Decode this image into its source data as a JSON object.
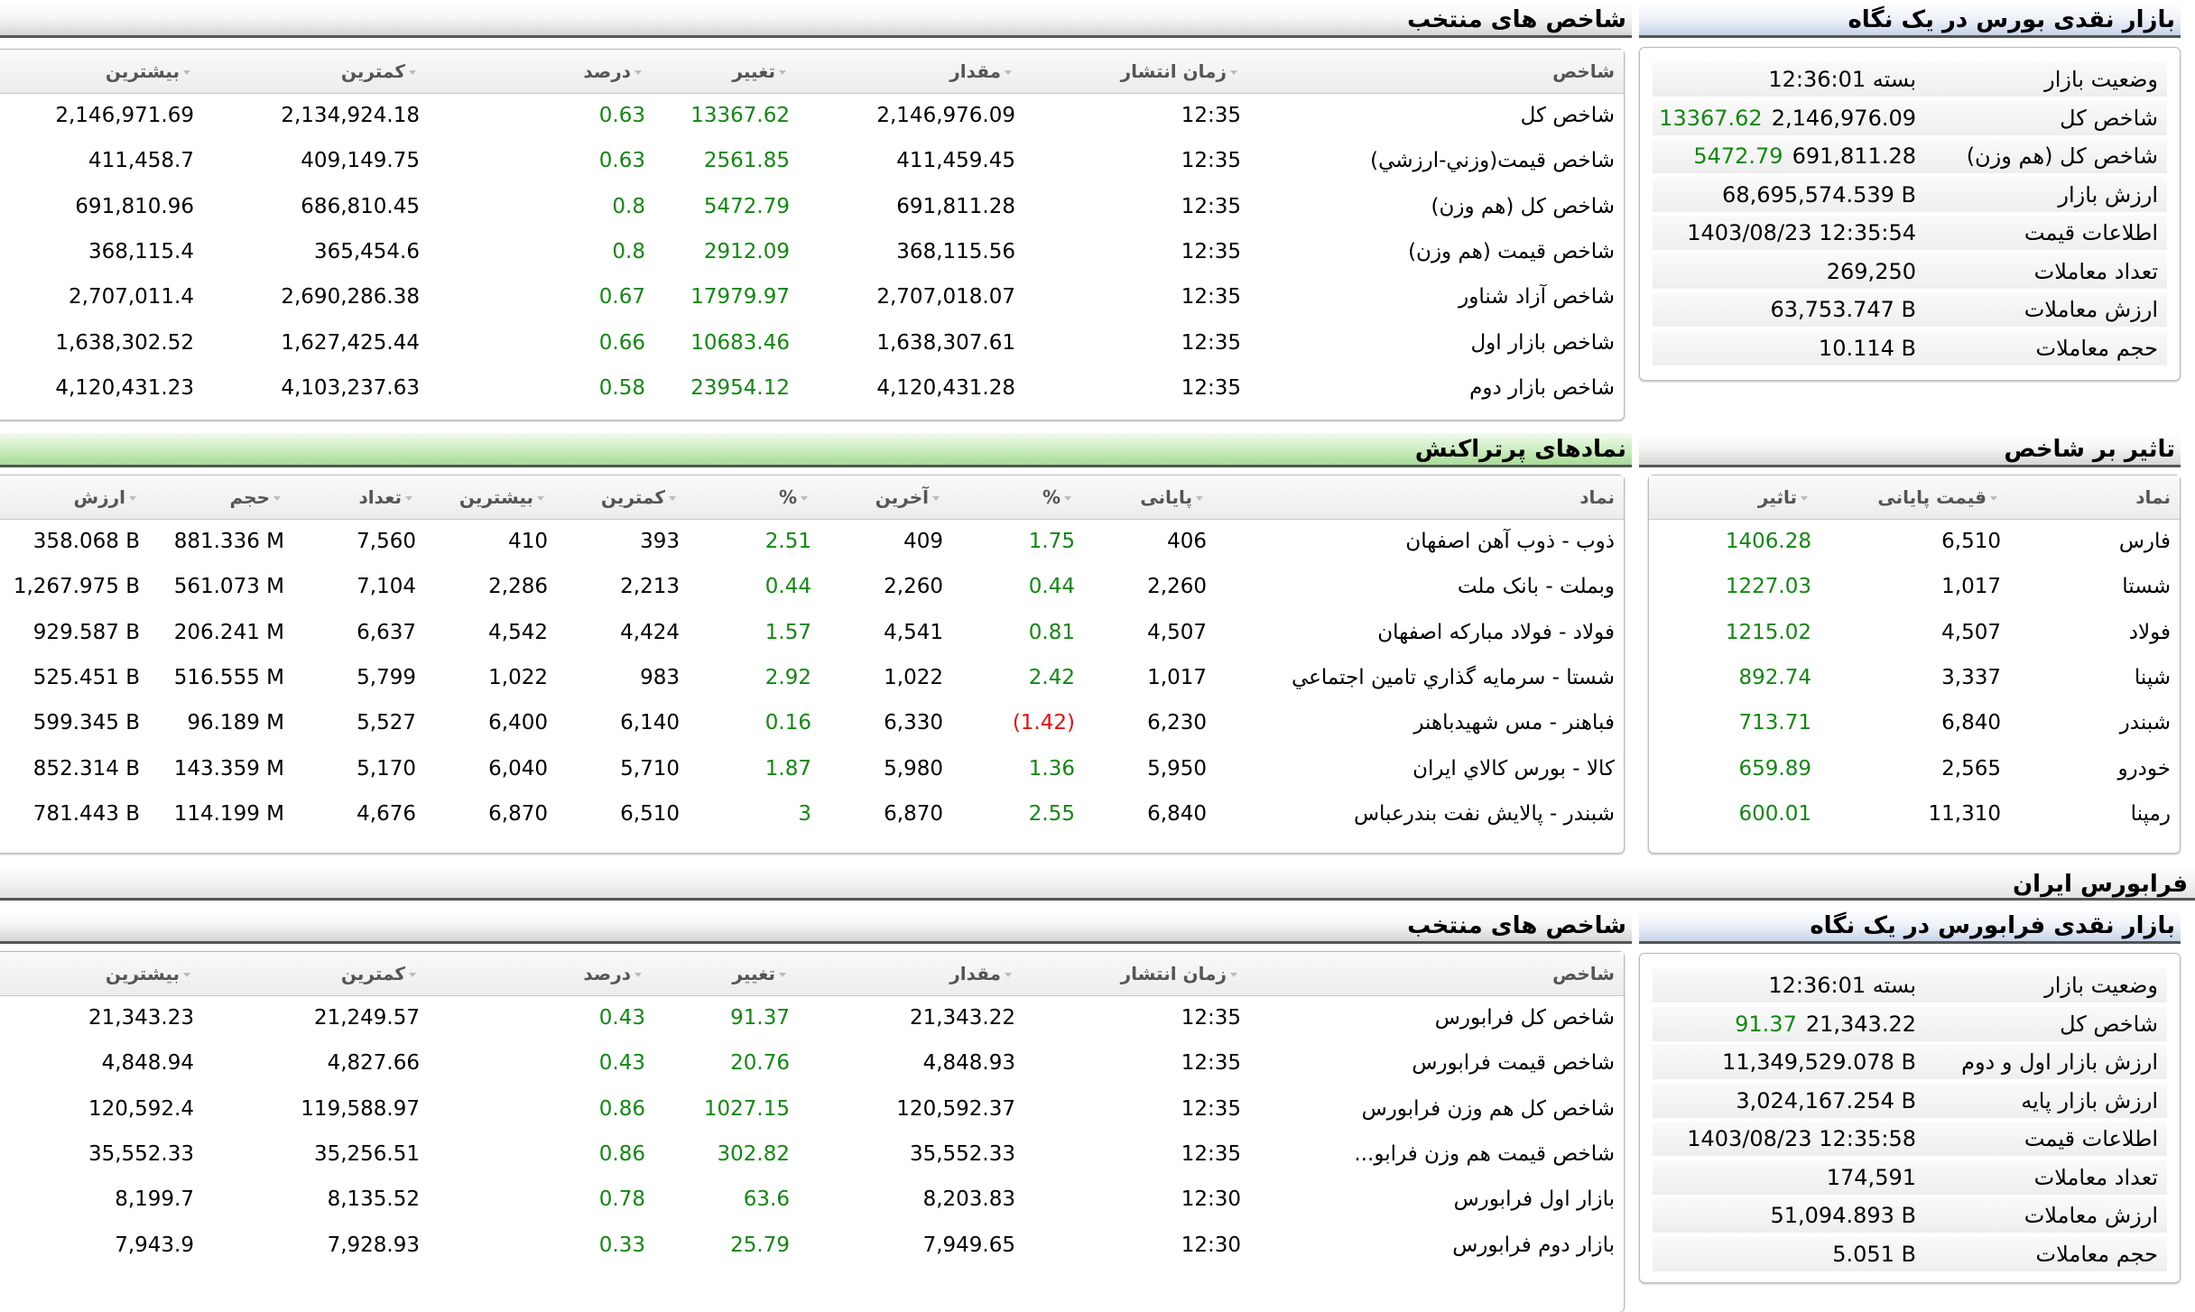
{
  "bourse": {
    "glance": {
      "title": "بازار نقدی بورس در یک نگاه",
      "rows": [
        {
          "label": "وضعیت بازار",
          "value": "بسته 12:36:01",
          "change": ""
        },
        {
          "label": "شاخص کل",
          "value": "2,146,976.09",
          "change": "13367.62"
        },
        {
          "label": "شاخص کل (هم وزن)",
          "value": "691,811.28",
          "change": "5472.79"
        },
        {
          "label": "ارزش بازار",
          "value": "68,695,574.539 B",
          "change": ""
        },
        {
          "label": "اطلاعات قیمت",
          "value": "1403/08/23 12:35:54",
          "change": ""
        },
        {
          "label": "تعداد معاملات",
          "value": "269,250",
          "change": ""
        },
        {
          "label": "ارزش معاملات",
          "value": "63,753.747 B",
          "change": ""
        },
        {
          "label": "حجم معاملات",
          "value": "10.114 B",
          "change": ""
        }
      ]
    },
    "indices": {
      "title": "شاخص های منتخب",
      "headers": [
        "شاخص",
        "زمان انتشار",
        "مقدار",
        "تغییر",
        "درصد",
        "کمترین",
        "بیشترین"
      ],
      "rows": [
        [
          "شاخص کل",
          "12:35",
          "2,146,976.09",
          "13367.62",
          "0.63",
          "2,134,924.18",
          "2,146,971.69"
        ],
        [
          "شاخص قیمت(وزني-ارزشي)",
          "12:35",
          "411,459.45",
          "2561.85",
          "0.63",
          "409,149.75",
          "411,458.7"
        ],
        [
          "شاخص کل (هم وزن)",
          "12:35",
          "691,811.28",
          "5472.79",
          "0.8",
          "686,810.45",
          "691,810.96"
        ],
        [
          "شاخص قیمت (هم وزن)",
          "12:35",
          "368,115.56",
          "2912.09",
          "0.8",
          "365,454.6",
          "368,115.4"
        ],
        [
          "شاخص آزاد شناور",
          "12:35",
          "2,707,018.07",
          "17979.97",
          "0.67",
          "2,690,286.38",
          "2,707,011.4"
        ],
        [
          "شاخص بازار اول",
          "12:35",
          "1,638,307.61",
          "10683.46",
          "0.66",
          "1,627,425.44",
          "1,638,302.52"
        ],
        [
          "شاخص بازار دوم",
          "12:35",
          "4,120,431.28",
          "23954.12",
          "0.58",
          "4,103,237.63",
          "4,120,431.23"
        ]
      ]
    },
    "impact": {
      "title": "تاثیر بر شاخص",
      "headers": [
        "نماد",
        "قیمت پایانی",
        "تاثیر"
      ],
      "rows": [
        [
          "فارس",
          "6,510",
          "1406.28"
        ],
        [
          "شستا",
          "1,017",
          "1227.03"
        ],
        [
          "فولاد",
          "4,507",
          "1215.02"
        ],
        [
          "شپنا",
          "3,337",
          "892.74"
        ],
        [
          "شبندر",
          "6,840",
          "713.71"
        ],
        [
          "خودرو",
          "2,565",
          "659.89"
        ],
        [
          "رمپنا",
          "11,310",
          "600.01"
        ]
      ]
    },
    "active": {
      "title": "نمادهای پرتراکنش",
      "headers": [
        "نماد",
        "پایانی",
        "%",
        "آخرین",
        "%",
        "کمترین",
        "بیشترین",
        "تعداد",
        "حجم",
        "ارزش"
      ],
      "rows": [
        [
          "ذوب - ذوب آهن اصفهان",
          "406",
          "1.75",
          "409",
          "2.51",
          "393",
          "410",
          "7,560",
          "881.336 M",
          "358.068 B"
        ],
        [
          "وبملت - بانک ملت",
          "2,260",
          "0.44",
          "2,260",
          "0.44",
          "2,213",
          "2,286",
          "7,104",
          "561.073 M",
          "1,267.975 B"
        ],
        [
          "فولاد - فولاد مبارکه اصفهان",
          "4,507",
          "0.81",
          "4,541",
          "1.57",
          "4,424",
          "4,542",
          "6,637",
          "206.241 M",
          "929.587 B"
        ],
        [
          "شستا - سرمايه گذاري تامين اجتماعي",
          "1,017",
          "2.42",
          "1,022",
          "2.92",
          "983",
          "1,022",
          "5,799",
          "516.555 M",
          "525.451 B"
        ],
        [
          "فباهنر - مس شهیدباهنر",
          "6,230",
          "(1.42)",
          "6,330",
          "0.16",
          "6,140",
          "6,400",
          "5,527",
          "96.189 M",
          "599.345 B"
        ],
        [
          "کالا - بورس کالاي ايران",
          "5,950",
          "1.36",
          "5,980",
          "1.87",
          "5,710",
          "6,040",
          "5,170",
          "143.359 M",
          "852.314 B"
        ],
        [
          "شبندر - پالايش نفت بندرعباس",
          "6,840",
          "2.55",
          "6,870",
          "3",
          "6,510",
          "6,870",
          "4,676",
          "114.199 M",
          "781.443 B"
        ]
      ]
    }
  },
  "farabourse": {
    "section_title": "فرابورس ایران",
    "glance": {
      "title": "بازار نقدی فرابورس در یک نگاه",
      "rows": [
        {
          "label": "وضعیت بازار",
          "value": "بسته 12:36:01",
          "change": ""
        },
        {
          "label": "شاخص کل",
          "value": "21,343.22",
          "change": "91.37"
        },
        {
          "label": "ارزش بازار اول و دوم",
          "value": "11,349,529.078 B",
          "change": ""
        },
        {
          "label": "ارزش بازار پایه",
          "value": "3,024,167.254 B",
          "change": ""
        },
        {
          "label": "اطلاعات قیمت",
          "value": "1403/08/23 12:35:58",
          "change": ""
        },
        {
          "label": "تعداد معاملات",
          "value": "174,591",
          "change": ""
        },
        {
          "label": "ارزش معاملات",
          "value": "51,094.893 B",
          "change": ""
        },
        {
          "label": "حجم معاملات",
          "value": "5.051 B",
          "change": ""
        }
      ]
    },
    "indices": {
      "title": "شاخص های منتخب",
      "headers": [
        "شاخص",
        "زمان انتشار",
        "مقدار",
        "تغییر",
        "درصد",
        "کمترین",
        "بیشترین"
      ],
      "rows": [
        [
          "شاخص کل فرابورس",
          "12:35",
          "21,343.22",
          "91.37",
          "0.43",
          "21,249.57",
          "21,343.23"
        ],
        [
          "شاخص قیمت فرابورس",
          "12:35",
          "4,848.93",
          "20.76",
          "0.43",
          "4,827.66",
          "4,848.94"
        ],
        [
          "شاخص کل هم وزن فرابورس",
          "12:35",
          "120,592.37",
          "1027.15",
          "0.86",
          "119,588.97",
          "120,592.4"
        ],
        [
          "شاخص قیمت هم وزن فرابو...",
          "12:35",
          "35,552.33",
          "302.82",
          "0.86",
          "35,256.51",
          "35,552.33"
        ],
        [
          "بازار اول فرابورس",
          "12:30",
          "8,203.83",
          "63.6",
          "0.78",
          "8,135.52",
          "8,199.7"
        ],
        [
          "بازار دوم فرابورس",
          "12:30",
          "7,949.65",
          "25.79",
          "0.33",
          "7,928.93",
          "7,943.9"
        ]
      ]
    }
  },
  "colors": {
    "positive": "#118811",
    "negative": "#dd1111",
    "header_green": "#b8e3aa",
    "header_blue": "#d2dcee"
  }
}
